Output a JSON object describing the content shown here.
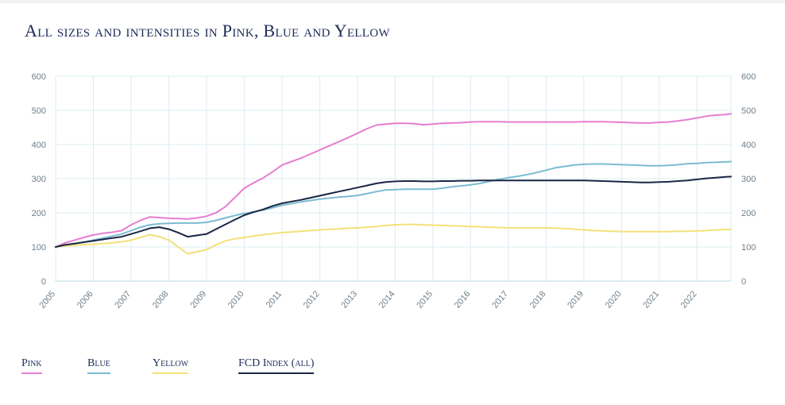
{
  "chart_data": {
    "type": "line",
    "title": "All sizes and intensities in Pink, Blue and Yellow",
    "xlabel": "",
    "ylabel": "",
    "ylim": [
      0,
      600
    ],
    "yticks": [
      0,
      100,
      200,
      300,
      400,
      500,
      600
    ],
    "xlim": [
      2005,
      2022.9
    ],
    "xticks": [
      "2005",
      "2006",
      "2007",
      "2008",
      "2009",
      "2010",
      "2011",
      "2012",
      "2013",
      "2014",
      "2015",
      "2016",
      "2017",
      "2018",
      "2019",
      "2020",
      "2021",
      "2022"
    ],
    "grid": true,
    "legend_position": "bottom",
    "x": [
      2005,
      2005.25,
      2005.5,
      2005.75,
      2006,
      2006.25,
      2006.5,
      2006.75,
      2007,
      2007.25,
      2007.5,
      2007.75,
      2008,
      2008.25,
      2008.5,
      2008.75,
      2009,
      2009.25,
      2009.5,
      2009.75,
      2010,
      2010.25,
      2010.5,
      2010.75,
      2011,
      2011.25,
      2011.5,
      2011.75,
      2012,
      2012.25,
      2012.5,
      2012.75,
      2013,
      2013.25,
      2013.5,
      2013.75,
      2014,
      2014.25,
      2014.5,
      2014.75,
      2015,
      2015.25,
      2015.5,
      2015.75,
      2016,
      2016.25,
      2016.5,
      2016.75,
      2017,
      2017.25,
      2017.5,
      2017.75,
      2018,
      2018.25,
      2018.5,
      2018.75,
      2019,
      2019.25,
      2019.5,
      2019.75,
      2020,
      2020.25,
      2020.5,
      2020.75,
      2021,
      2021.25,
      2021.5,
      2021.75,
      2022,
      2022.25,
      2022.5,
      2022.75,
      2022.9
    ],
    "series": [
      {
        "name": "Pink",
        "color": "#e67ed2",
        "values": [
          100,
          112,
          120,
          128,
          135,
          140,
          143,
          148,
          165,
          178,
          188,
          186,
          184,
          183,
          182,
          185,
          190,
          200,
          218,
          245,
          272,
          288,
          302,
          320,
          340,
          350,
          360,
          372,
          384,
          396,
          408,
          420,
          433,
          446,
          457,
          460,
          462,
          462,
          461,
          458,
          460,
          462,
          463,
          464,
          466,
          467,
          467,
          467,
          466,
          466,
          466,
          466,
          466,
          466,
          466,
          466,
          467,
          467,
          467,
          466,
          465,
          464,
          463,
          463,
          465,
          466,
          469,
          473,
          478,
          483,
          486,
          488,
          490
        ]
      },
      {
        "name": "Blue",
        "color": "#7bbcd2",
        "values": [
          100,
          106,
          110,
          114,
          120,
          126,
          132,
          138,
          148,
          158,
          165,
          168,
          169,
          170,
          170,
          170,
          172,
          178,
          185,
          192,
          198,
          203,
          208,
          215,
          222,
          227,
          232,
          236,
          240,
          243,
          246,
          248,
          251,
          256,
          262,
          267,
          268,
          269,
          269,
          269,
          269,
          272,
          276,
          279,
          282,
          286,
          292,
          298,
          303,
          307,
          312,
          318,
          325,
          332,
          336,
          340,
          342,
          343,
          343,
          342,
          341,
          340,
          339,
          338,
          338,
          339,
          341,
          344,
          345,
          347,
          348,
          349,
          350
        ]
      },
      {
        "name": "Yellow",
        "color": "#f4e07a",
        "values": [
          100,
          103,
          105,
          107,
          108,
          110,
          112,
          115,
          120,
          128,
          136,
          130,
          120,
          100,
          80,
          86,
          92,
          106,
          118,
          124,
          128,
          132,
          136,
          139,
          142,
          144,
          146,
          148,
          150,
          152,
          153,
          155,
          156,
          158,
          160,
          163,
          165,
          166,
          166,
          165,
          164,
          163,
          162,
          161,
          160,
          159,
          158,
          157,
          156,
          156,
          156,
          156,
          156,
          155,
          154,
          152,
          150,
          148,
          147,
          146,
          145,
          145,
          145,
          145,
          145,
          145,
          146,
          146,
          147,
          148,
          150,
          151,
          152
        ]
      },
      {
        "name": "FCD Index (all)",
        "color": "#1a2645",
        "values": [
          100,
          106,
          110,
          114,
          118,
          122,
          126,
          130,
          138,
          146,
          155,
          158,
          152,
          142,
          130,
          134,
          138,
          152,
          166,
          180,
          193,
          202,
          210,
          220,
          228,
          233,
          238,
          244,
          250,
          256,
          262,
          268,
          274,
          280,
          286,
          290,
          292,
          293,
          293,
          292,
          292,
          293,
          293,
          294,
          294,
          295,
          295,
          295,
          295,
          295,
          295,
          295,
          295,
          295,
          295,
          295,
          295,
          294,
          293,
          292,
          291,
          290,
          289,
          289,
          290,
          291,
          293,
          295,
          298,
          301,
          303,
          305,
          306
        ]
      }
    ]
  }
}
